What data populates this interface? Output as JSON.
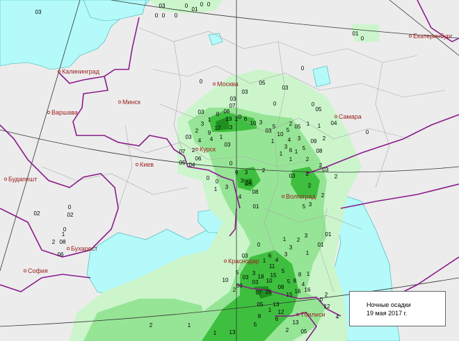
{
  "legend": {
    "title": "Ночные осадки",
    "date": "19 мая 2017 г."
  },
  "colors": {
    "land": "#ececec",
    "water": "#b4fafa",
    "border": "#8a1a8a",
    "city": "#9b2020",
    "precip_light": "#ccf5cc",
    "precip_moderate": "#96e596",
    "precip_heavy": "#3fbf3f",
    "precip_very_heavy": "#1f8f1f"
  },
  "cities": [
    "Калининград",
    "Варшава",
    "Минск",
    "Москва",
    "Курск",
    "Киев",
    "Будапешт",
    "Бухарест",
    "София",
    "Самара",
    "Волгоград",
    "Краснодар",
    "Тбилиси",
    "Екатеринбург"
  ],
  "precipitation_values": [
    "03",
    "03",
    "0",
    "01",
    "0",
    "0",
    "0",
    "0",
    "0",
    "01",
    "0",
    "0",
    "05",
    "03",
    "03",
    "0",
    "03",
    "0",
    "07",
    "0",
    "04",
    "0",
    "0",
    "05",
    "03",
    "0",
    "06",
    "19",
    "2",
    "6",
    "10",
    "3",
    "1",
    "3",
    "17",
    "3",
    "2",
    "9",
    "4",
    "1",
    "03",
    "4",
    "03",
    "5",
    "2",
    "05",
    "1",
    "1",
    "03",
    "10",
    "5",
    "4",
    "3",
    "09",
    "2",
    "1",
    "3",
    "6",
    "1",
    "5",
    "08",
    "1",
    "1",
    "2",
    "2",
    "03",
    "07",
    "2",
    "06",
    "05",
    "04",
    "0",
    "3",
    "2",
    "9",
    "0",
    "0",
    "3",
    "24",
    "03",
    "2",
    "2",
    "1",
    "3",
    "4",
    "08",
    "2",
    "01",
    "3",
    "5",
    "2",
    "1",
    "2",
    "3",
    "01",
    "01",
    "0",
    "3",
    "1",
    "3",
    "6",
    "4",
    "1",
    "03",
    "11",
    "5",
    "5",
    "3",
    "15",
    "8",
    "1",
    "03",
    "18",
    "10",
    "03",
    "10",
    "5",
    "8",
    "4",
    "08",
    "16",
    "03",
    "2",
    "07",
    "26",
    "15",
    "16",
    "2",
    "0",
    "05",
    "13",
    "12",
    "1",
    "12",
    "8",
    "6",
    "5",
    "13",
    "2",
    "1",
    "13",
    "4",
    "05",
    "0",
    "02",
    "02",
    "0",
    "1",
    "2",
    "08",
    "06",
    "2",
    "1",
    "9"
  ]
}
